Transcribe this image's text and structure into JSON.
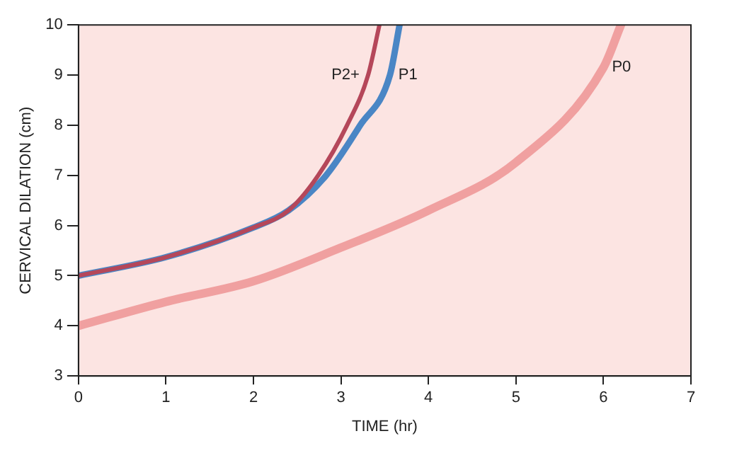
{
  "chart_data": {
    "type": "line",
    "xlabel": "TIME (hr)",
    "ylabel": "CERVICAL DILATION (cm)",
    "xlim": [
      0,
      7
    ],
    "xticks": [
      0,
      1,
      2,
      3,
      4,
      5,
      6,
      7
    ],
    "ylim": [
      3,
      10
    ],
    "yticks": [
      3,
      4,
      5,
      6,
      7,
      8,
      9,
      10
    ],
    "grid": false,
    "legend": false,
    "marker": "none",
    "line_style": "solid",
    "series": [
      {
        "name": "P2+",
        "color": "#b5475a",
        "x": [
          0,
          1,
          2,
          2.4,
          2.74,
          3.07,
          3.31,
          3.44
        ],
        "values": [
          5,
          5.37,
          5.96,
          6.3,
          7,
          8,
          9,
          10
        ]
      },
      {
        "name": "P1",
        "color": "#4a86c5",
        "x": [
          0,
          1,
          2,
          2.4,
          2.83,
          3.22,
          3.56,
          3.67
        ],
        "values": [
          5,
          5.37,
          5.96,
          6.3,
          7,
          8,
          9,
          10
        ]
      },
      {
        "name": "P0",
        "color": "#f0a0a0",
        "x": [
          0,
          1,
          2,
          3,
          4,
          5,
          6,
          6.2
        ],
        "values": [
          4,
          4.48,
          4.89,
          5.56,
          6.3,
          7.26,
          9.15,
          10
        ]
      }
    ]
  }
}
